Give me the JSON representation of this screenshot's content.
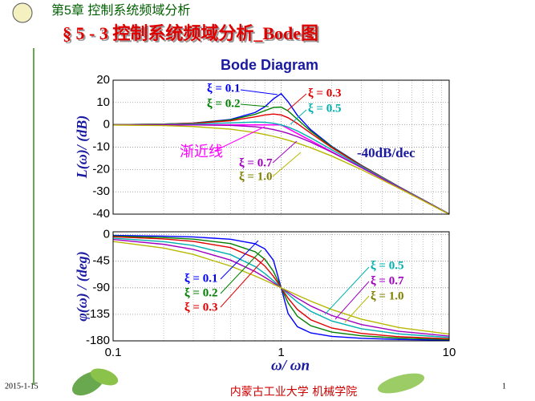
{
  "header": {
    "chapter": "第5章  控制系统频域分析",
    "title": "§ 5 - 3  控制系统频域分析_Bode图"
  },
  "footer": {
    "date": "2015-1-15",
    "institute": "内蒙古工业大学 机械学院",
    "page": "1"
  },
  "chart_data": [
    {
      "type": "line",
      "title": "Bode Diagram",
      "ylabel": "L(ω)/ (dB)",
      "log_x": true,
      "grid": true,
      "xlim": [
        0.1,
        10
      ],
      "xticks": [
        0.1,
        1,
        10
      ],
      "ylim": [
        -40,
        20
      ],
      "yticks": [
        20,
        10,
        0,
        -10,
        -20,
        -30,
        -40
      ],
      "annotations": [
        "-40dB/dec"
      ],
      "x": [
        0.1,
        0.2,
        0.3,
        0.5,
        0.7,
        0.8,
        0.9,
        1,
        1.1,
        1.25,
        1.5,
        2,
        3,
        5,
        10
      ],
      "series": [
        {
          "name": "ξ = 0.1",
          "color": "#0000ff",
          "values": [
            0.09,
            0.35,
            0.8,
            2.42,
            5.53,
            8.09,
            11.64,
            13.98,
            10.34,
            4.21,
            -2.18,
            -9.62,
            -18.09,
            -27.61,
            -39.91
          ]
        },
        {
          "name": "ξ = 0.2",
          "color": "#008000",
          "values": [
            0.08,
            0.33,
            0.74,
            2.2,
            4.7,
            6.35,
            7.81,
            7.96,
            6.24,
            2.47,
            -2.84,
            -9.84,
            -18.16,
            -27.63,
            -39.92
          ]
        },
        {
          "name": "ξ = 0.3",
          "color": "#e00000",
          "values": [
            0.07,
            0.29,
            0.65,
            1.85,
            3.6,
            4.44,
            4.85,
            4.44,
            3.19,
            0.56,
            -3.75,
            -10.19,
            -18.28,
            -27.67,
            -39.93
          ]
        },
        {
          "name": "ξ = 0.5",
          "color": "#00b0b0",
          "values": [
            0.04,
            0.17,
            0.37,
            0.9,
            1.25,
            1.14,
            0.73,
            0,
            -0.98,
            -2.74,
            -5.81,
            -11.14,
            -18.63,
            -27.79,
            -39.96
          ]
        },
        {
          "name": "ξ = 0.7",
          "color": "#a000c0",
          "values": [
            0,
            0,
            -0.02,
            -0.22,
            -0.87,
            -1.41,
            -2.1,
            -2.92,
            -3.83,
            -5.29,
            -7.76,
            -12.26,
            -19.12,
            -27.96,
            -40
          ]
        },
        {
          "name": "ξ = 1.0",
          "color": "#b8b800",
          "values": [
            -0.09,
            -0.34,
            -0.75,
            -1.94,
            -3.46,
            -4.3,
            -5.15,
            -6.02,
            -6.89,
            -8.17,
            -10.24,
            -13.98,
            -20,
            -28.3,
            -40.09
          ]
        }
      ],
      "asymptote": {
        "name": "渐近线",
        "color": "#ff00ff",
        "x": [
          0.1,
          1,
          10
        ],
        "values": [
          0,
          0,
          -40
        ]
      }
    },
    {
      "type": "line",
      "xlabel": "ω/ ωn",
      "ylabel": "φ(ω) / (deg)",
      "log_x": true,
      "grid": true,
      "xlim": [
        0.1,
        10
      ],
      "xticks": [
        0.1,
        1,
        10
      ],
      "ylim": [
        -180,
        5
      ],
      "yticks": [
        0,
        -45,
        -90,
        -135,
        -180
      ],
      "x": [
        0.1,
        0.2,
        0.3,
        0.5,
        0.7,
        0.8,
        0.9,
        1,
        1.1,
        1.25,
        1.5,
        2,
        3,
        5,
        10
      ],
      "series": [
        {
          "name": "ξ = 0.1",
          "color": "#0000ff",
          "values": [
            -1.16,
            -2.39,
            -3.77,
            -7.59,
            -15.35,
            -23.96,
            -43.45,
            -90,
            -133.67,
            -156.04,
            -166.5,
            -172.41,
            -175.71,
            -177.61,
            -178.84
          ]
        },
        {
          "name": "ξ = 0.2",
          "color": "#008000",
          "values": [
            -2.31,
            -4.76,
            -7.51,
            -14.93,
            -28.77,
            -41.63,
            -62.18,
            -90,
            -115.52,
            -138.37,
            -154.36,
            -165.07,
            -171.47,
            -175.24,
            -177.69
          ]
        },
        {
          "name": "ξ = 0.3",
          "color": "#e00000",
          "values": [
            -3.47,
            -7.13,
            -11.19,
            -21.8,
            -39.47,
            -53.13,
            -70.62,
            -90,
            -107.65,
            -126.87,
            -144.25,
            -158.2,
            -167.32,
            -172.87,
            -176.53
          ]
        },
        {
          "name": "ξ = 0.5",
          "color": "#00b0b0",
          "values": [
            -5.77,
            -11.77,
            -18.25,
            -33.69,
            -53.93,
            -65.77,
            -78.08,
            -90,
            -100.81,
            -114.23,
            -129.81,
            -146.31,
            -159.44,
            -168.23,
            -174.23
          ]
        },
        {
          "name": "ξ = 0.7",
          "color": "#a000c0",
          "values": [
            -8.05,
            -16.26,
            -24.78,
            -43.03,
            -62.51,
            -72.18,
            -81.42,
            -90,
            -97.77,
            -107.82,
            -120.76,
            -136.97,
            -152.3,
            -163.74,
            -171.95
          ]
        },
        {
          "name": "ξ = 1.0",
          "color": "#b8b800",
          "values": [
            -11.42,
            -22.62,
            -33.4,
            -53.13,
            -69.99,
            -77.32,
            -83.97,
            -90,
            -95.45,
            -102.68,
            -112.62,
            -126.87,
            -143.13,
            -157.38,
            -168.58
          ]
        }
      ]
    }
  ]
}
